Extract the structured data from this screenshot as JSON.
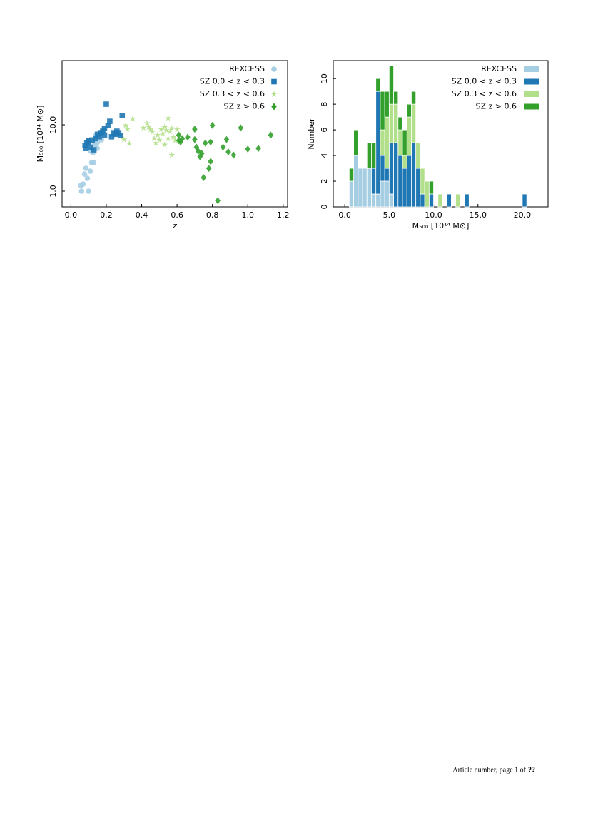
{
  "chart_data": [
    {
      "type": "scatter",
      "xlabel": "z",
      "ylabel": "M₅₀₀ [10¹⁴ M⊙]",
      "yscale": "log",
      "xlim": [
        -0.05,
        1.225
      ],
      "ylim": [
        0.58,
        93
      ],
      "xticks": [
        {
          "value": 0,
          "label": "0.0"
        },
        0.2,
        0.4,
        0.6,
        0.8,
        {
          "value": 1,
          "label": "1.0"
        },
        1.2
      ],
      "yticks": [
        {
          "value": 1,
          "label": "1.0"
        },
        {
          "value": 10,
          "label": "10.0"
        }
      ],
      "legend": "upper right",
      "series": [
        {
          "name": "REXCESS",
          "color": "#a6cee3",
          "marker": "circle",
          "x": [
            0.056,
            0.069,
            0.06,
            0.1,
            0.077,
            0.085,
            0.093,
            0.109,
            0.117,
            0.129,
            0.125,
            0.113,
            0.137,
            0.149,
            0.141,
            0.157,
            0.165,
            0.181,
            0.149,
            0.133,
            0.173
          ],
          "values": [
            1.22,
            1.28,
            1.0,
            1.0,
            1.81,
            2.21,
            1.56,
            2.0,
            2.69,
            2.69,
            3.81,
            4.0,
            4.65,
            5.38,
            6.9,
            7.24,
            7.6,
            8.0,
            4.42,
            5.38,
            5.95
          ]
        },
        {
          "name": "SZ 0.0 < z < 0.3",
          "color": "#1f78b4",
          "marker": "square",
          "x": [
            0.08,
            0.085,
            0.09,
            0.1,
            0.12,
            0.14,
            0.16,
            0.17,
            0.18,
            0.19,
            0.21,
            0.22,
            0.2,
            0.15,
            0.24,
            0.25,
            0.27,
            0.29,
            0.28,
            0.23,
            0.13,
            0.11,
            0.1,
            0.26,
            0.19
          ],
          "values": [
            4.9,
            4.4,
            5.4,
            5.7,
            5.9,
            6.2,
            6.6,
            7.6,
            8.0,
            8.8,
            9.8,
            11.3,
            20.5,
            7.2,
            7.6,
            7.2,
            7.6,
            13.8,
            6.9,
            6.6,
            4.2,
            4.6,
            5.5,
            8.0,
            7.0
          ]
        },
        {
          "name": "SZ 0.3 < z < 0.6",
          "color": "#b2df8a",
          "marker": "star",
          "x": [
            0.31,
            0.32,
            0.33,
            0.35,
            0.41,
            0.43,
            0.44,
            0.46,
            0.47,
            0.48,
            0.49,
            0.5,
            0.51,
            0.52,
            0.53,
            0.54,
            0.55,
            0.55,
            0.56,
            0.57,
            0.57,
            0.58,
            0.59,
            0.45,
            0.53,
            0.3,
            0.6
          ],
          "values": [
            9.8,
            8.6,
            5.2,
            12.4,
            9.0,
            10.5,
            9.3,
            7.8,
            6.2,
            5.3,
            7.0,
            5.9,
            8.6,
            7.4,
            9.2,
            8.3,
            12.6,
            6.2,
            7.9,
            3.5,
            8.8,
            6.5,
            5.8,
            8.5,
            5.0,
            6.0,
            8.5
          ]
        },
        {
          "name": "SZ z > 0.6",
          "color": "#33a02c",
          "marker": "diamond",
          "x": [
            0.61,
            0.62,
            0.63,
            0.66,
            0.7,
            0.7,
            0.71,
            0.72,
            0.73,
            0.74,
            0.75,
            0.76,
            0.78,
            0.79,
            0.79,
            0.8,
            0.83,
            0.86,
            0.88,
            0.89,
            0.92,
            0.96,
            1.0,
            1.06,
            1.13,
            0.61
          ],
          "values": [
            7.0,
            5.5,
            6.2,
            6.5,
            8.6,
            6.0,
            4.6,
            4.0,
            3.3,
            3.7,
            1.6,
            5.3,
            2.2,
            5.5,
            2.8,
            9.8,
            0.72,
            4.6,
            6.0,
            3.9,
            3.5,
            9.0,
            4.3,
            4.4,
            7.0,
            5.8
          ]
        }
      ]
    },
    {
      "type": "histogram",
      "xlabel": "M₅₀₀ [10¹⁴ M⊙]",
      "ylabel": "Number",
      "stacked": true,
      "xlim": [
        -1.3,
        22.9
      ],
      "ylim": [
        0,
        11.4
      ],
      "xticks": [
        {
          "value": 0,
          "label": "0.0"
        },
        {
          "value": 5,
          "label": "5.0"
        },
        {
          "value": 10,
          "label": "10.0"
        },
        {
          "value": 15,
          "label": "15.0"
        },
        {
          "value": 20,
          "label": "20.0"
        }
      ],
      "yticks": [
        0,
        2,
        4,
        6,
        8,
        10
      ],
      "legend": "upper right",
      "bins": [
        0.5,
        1,
        1.5,
        2,
        2.5,
        3,
        3.5,
        4,
        4.5,
        5,
        5.5,
        6,
        6.5,
        7,
        7.5,
        8,
        8.5,
        9,
        9.5,
        10,
        10.5,
        11,
        11.5,
        12,
        12.5,
        13,
        13.5,
        14,
        14.5,
        15,
        15.5,
        16,
        16.5,
        17,
        17.5,
        18,
        18.5,
        19,
        19.5,
        20,
        20.5
      ],
      "series": [
        {
          "name": "REXCESS",
          "color": "#a6cee3",
          "values": [
            2,
            4,
            3,
            3,
            3,
            1,
            1,
            2,
            2,
            1,
            0,
            0,
            0,
            0,
            0,
            0,
            0,
            0,
            0,
            0,
            0,
            0,
            0,
            0,
            0,
            0,
            0,
            0,
            0,
            0,
            0,
            0,
            0,
            0,
            0,
            0,
            0,
            0,
            0,
            0
          ]
        },
        {
          "name": "SZ 0.0 < z < 0.3",
          "color": "#1f78b4",
          "values": [
            0,
            0,
            0,
            0,
            0,
            2,
            8,
            2,
            1,
            4,
            5,
            4,
            3,
            4,
            5,
            3,
            1,
            0,
            1,
            0,
            0,
            0,
            1,
            0,
            0,
            0,
            1,
            0,
            0,
            0,
            0,
            0,
            0,
            0,
            0,
            0,
            0,
            0,
            0,
            1
          ]
        },
        {
          "name": "SZ 0.3 < z < 0.6",
          "color": "#b2df8a",
          "values": [
            0,
            0,
            0,
            0,
            0,
            0,
            0,
            2,
            4,
            3,
            3,
            2,
            1,
            3,
            3,
            2,
            2,
            2,
            0,
            0,
            1,
            0,
            0,
            0,
            1,
            0,
            0,
            0,
            0,
            0,
            0,
            0,
            0,
            0,
            0,
            0,
            0,
            0,
            0,
            0
          ]
        },
        {
          "name": "SZ z > 0.6",
          "color": "#33a02c",
          "values": [
            1,
            2,
            0,
            0,
            2,
            2,
            1,
            3,
            2,
            3,
            1,
            1,
            2,
            1,
            1,
            0,
            0,
            0,
            1,
            0,
            0,
            0,
            0,
            0,
            0,
            0,
            0,
            0,
            0,
            0,
            0,
            0,
            0,
            0,
            0,
            0,
            0,
            0,
            0,
            0
          ]
        }
      ]
    }
  ],
  "footer": {
    "text": "Article number, page 1 of",
    "ref": "??"
  }
}
